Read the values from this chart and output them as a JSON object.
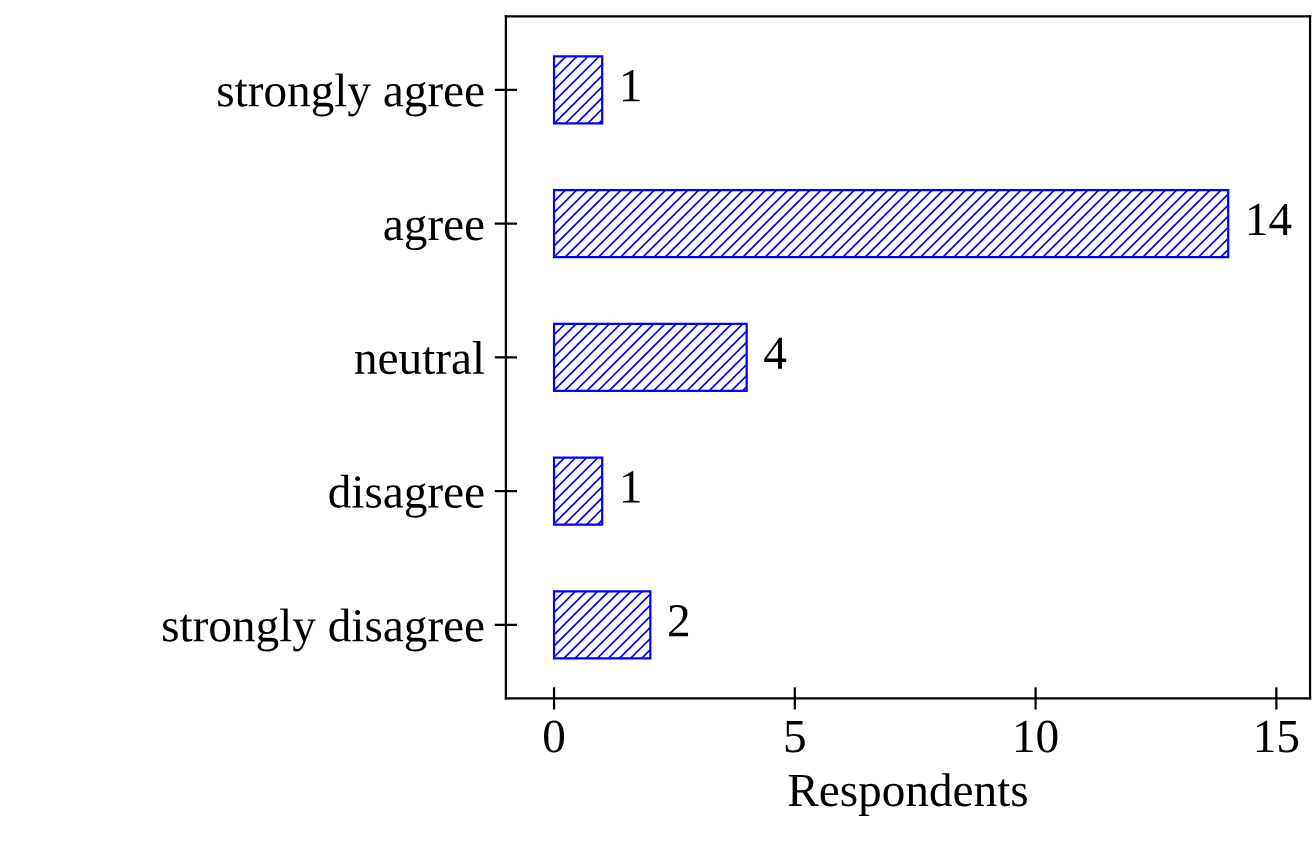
{
  "chart_data": {
    "type": "bar",
    "orientation": "horizontal",
    "xlabel": "Respondents",
    "categories": [
      "strongly agree",
      "agree",
      "neutral",
      "disagree",
      "strongly disagree"
    ],
    "values": [
      1,
      14,
      4,
      1,
      2
    ],
    "color": "#0000ff",
    "xlim": [
      -1,
      15.7
    ],
    "xticks": [
      0,
      5,
      10,
      15
    ],
    "data_labels": true,
    "grid": false
  }
}
